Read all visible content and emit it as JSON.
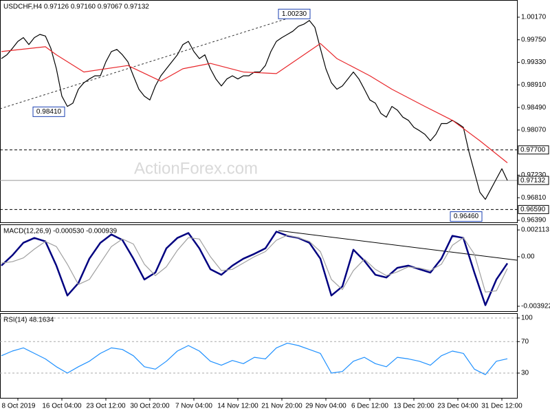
{
  "chart_data": [
    {
      "type": "line",
      "title": "USDCHF,H4  0.97126 0.97160 0.97067 0.97132",
      "watermark": "ActionForex.com",
      "categories": [
        null,
        null,
        null,
        "8 Oct 2019",
        null,
        null,
        null,
        null,
        null,
        null,
        null,
        "16 Oct 04:00",
        null,
        null,
        null,
        null,
        null,
        null,
        null,
        "23 Oct 12:00",
        null,
        null,
        null,
        null,
        null,
        null,
        null,
        "30 Oct 20:00",
        null,
        null,
        null,
        null,
        null,
        null,
        null,
        "7 Nov 04:00",
        null,
        null,
        null,
        null,
        null,
        null,
        null,
        "14 Nov 12:00",
        null,
        null,
        null,
        null,
        null,
        null,
        null,
        "21 Nov 20:00",
        null,
        null,
        null,
        null,
        null,
        null,
        null,
        "29 Nov 04:00",
        null,
        null,
        null,
        null,
        null,
        null,
        null,
        "6 Dec 12:00",
        null,
        null,
        null,
        null,
        null,
        null,
        null,
        "13 Dec 20:00",
        null,
        null,
        null,
        null,
        null,
        null,
        null,
        "23 Dec 04:00",
        null,
        null,
        null,
        null,
        null,
        null,
        null,
        "31 Dec 12:00",
        null
      ],
      "series": [
        {
          "color": "#000000",
          "values": [
            0.994,
            0.9947,
            0.9959,
            0.9972,
            0.9979,
            0.9966,
            0.9979,
            0.9985,
            0.9982,
            0.9959,
            0.9921,
            0.987,
            0.9851,
            0.9857,
            0.9883,
            0.9895,
            0.9902,
            0.9908,
            0.9908,
            0.9934,
            0.9953,
            0.9957,
            0.9947,
            0.9934,
            0.9908,
            0.9883,
            0.987,
            0.9863,
            0.9889,
            0.9908,
            0.9921,
            0.9934,
            0.9947,
            0.9966,
            0.9972,
            0.9953,
            0.994,
            0.9947,
            0.9921,
            0.9902,
            0.9889,
            0.9902,
            0.9908,
            0.9902,
            0.9908,
            0.9908,
            0.9915,
            0.9915,
            0.9927,
            0.9953,
            0.9972,
            0.9979,
            0.9985,
            0.9991,
            1.0,
            1.0004,
            1.0011,
            0.9998,
            0.9959,
            0.9921,
            0.9895,
            0.9883,
            0.9889,
            0.9902,
            0.9915,
            0.9902,
            0.9883,
            0.9863,
            0.9857,
            0.9838,
            0.9831,
            0.9851,
            0.9844,
            0.9831,
            0.9825,
            0.9812,
            0.9806,
            0.9799,
            0.9787,
            0.9799,
            0.9819,
            0.9819,
            0.9825,
            0.9819,
            0.9812,
            0.9767,
            0.9729,
            0.9691,
            0.9678,
            0.9697,
            0.9716,
            0.9735,
            0.97132
          ]
        },
        {
          "color": "#e8262a",
          "x": [
            0,
            8,
            10,
            15,
            23,
            29,
            33,
            38,
            44,
            50,
            55,
            58,
            61,
            67,
            71,
            77,
            82,
            87,
            92
          ],
          "values": [
            0.9953,
            0.9962,
            0.9947,
            0.9915,
            0.9927,
            0.9898,
            0.9921,
            0.9931,
            0.9915,
            0.9912,
            0.9947,
            0.9968,
            0.994,
            0.9908,
            0.9883,
            0.9851,
            0.9825,
            0.9787,
            0.9746
          ]
        }
      ],
      "ylim": [
        0.96352,
        1.0049
      ],
      "yticks": [
        {
          "value": 1.0017,
          "label": "1.00170"
        },
        {
          "value": 0.9975,
          "label": "0.99750"
        },
        {
          "value": 0.9933,
          "label": "0.99330"
        },
        {
          "value": 0.9891,
          "label": "0.98910"
        },
        {
          "value": 0.9849,
          "label": "0.98490"
        },
        {
          "value": 0.9807,
          "label": "0.98070"
        },
        {
          "value": 0.9723,
          "label": "0.97230"
        },
        {
          "value": 0.9681,
          "label": "0.96810"
        },
        {
          "value": 0.9639,
          "label": "0.96390"
        }
      ],
      "levels": [
        {
          "value": 0.977,
          "label": "0.97700",
          "style": "dashed"
        },
        {
          "value": 0.9659,
          "label": "0.96590",
          "style": "dashed"
        },
        {
          "value": 0.97132,
          "label": "0.97132",
          "style": "solid"
        }
      ],
      "annotations": [
        {
          "value": 1.0023,
          "label": "1.00230"
        },
        {
          "value": 0.9841,
          "label": "0.98410"
        },
        {
          "value": 0.9646,
          "label": "0.96460"
        }
      ]
    },
    {
      "type": "line",
      "title": "MACD(12,26,9) -0.000530 -0.000939",
      "series": [
        {
          "color": "#000080",
          "x": [
            0,
            2,
            4,
            6,
            8,
            10,
            12,
            14,
            16,
            18,
            20,
            22,
            24,
            26,
            28,
            30,
            32,
            34,
            36,
            38,
            40,
            42,
            44,
            46,
            48,
            50,
            52,
            54,
            56,
            58,
            60,
            62,
            64,
            66,
            68,
            70,
            72,
            74,
            76,
            78,
            80,
            82,
            84,
            86,
            88,
            90,
            92
          ],
          "values": [
            -0.00071,
            0.00011,
            0.0011,
            0.00148,
            0.00121,
            -0.00071,
            -0.00307,
            -0.00209,
            -0.00016,
            0.0011,
            0.00176,
            0.00132,
            -0.00016,
            -0.00181,
            -0.00126,
            0.00066,
            0.00148,
            0.00187,
            0.00066,
            -0.00099,
            -0.00143,
            -0.00071,
            -0.00016,
            0.00022,
            0.00066,
            0.00198,
            0.00165,
            0.00148,
            0.0011,
            -0.00016,
            -0.00307,
            -0.00236,
            0.00055,
            -0.00033,
            -0.00143,
            -0.00165,
            -0.00088,
            -0.00071,
            -0.00099,
            -0.00126,
            -0.00016,
            0.00165,
            0.00148,
            -0.00126,
            -0.00384,
            -0.00181,
            -0.00053
          ]
        },
        {
          "color": "#a0a0a0",
          "x": [
            0,
            2,
            4,
            6,
            8,
            10,
            12,
            14,
            16,
            18,
            20,
            22,
            24,
            26,
            28,
            30,
            32,
            34,
            36,
            38,
            40,
            42,
            44,
            46,
            48,
            50,
            52,
            54,
            56,
            58,
            60,
            62,
            64,
            66,
            68,
            70,
            72,
            74,
            76,
            78,
            80,
            82,
            84,
            86,
            88,
            90,
            92
          ],
          "values": [
            -0.0005,
            -0.0004,
            -0.0001,
            0.0006,
            0.0012,
            0.0008,
            -0.0006,
            -0.0022,
            -0.0018,
            -0.0005,
            0.0008,
            0.0014,
            0.001,
            -0.0006,
            -0.0015,
            -0.0008,
            0.0005,
            0.0015,
            0.0014,
            0.0,
            -0.0011,
            -0.001,
            -0.0005,
            0.0,
            0.0004,
            0.0013,
            0.0017,
            0.0015,
            0.0012,
            0.0004,
            -0.0018,
            -0.0026,
            -0.0011,
            -0.0002,
            -0.001,
            -0.0015,
            -0.0012,
            -0.0008,
            -0.0009,
            -0.0011,
            -0.0006,
            0.0009,
            0.0015,
            0.0002,
            -0.0028,
            -0.0027,
            -0.000939
          ]
        }
      ],
      "ylim": [
        -0.004306,
        0.002552
      ],
      "yticks": [
        0.002113,
        {
          "value": 0,
          "label": "0.00"
        },
        -0.003922
      ]
    },
    {
      "type": "line",
      "title": "RSI(14) 48.1634",
      "grid": true,
      "series": [
        {
          "color": "#1e90ff",
          "x": [
            0,
            2,
            4,
            6,
            8,
            10,
            12,
            14,
            16,
            18,
            20,
            22,
            24,
            26,
            28,
            30,
            32,
            34,
            36,
            38,
            40,
            42,
            44,
            46,
            48,
            50,
            52,
            54,
            56,
            58,
            60,
            62,
            64,
            66,
            68,
            70,
            72,
            74,
            76,
            78,
            80,
            82,
            84,
            86,
            88,
            90,
            92
          ],
          "values": [
            52,
            58,
            62,
            55,
            48,
            38,
            30,
            38,
            45,
            55,
            62,
            60,
            52,
            38,
            35,
            45,
            58,
            65,
            58,
            45,
            40,
            46,
            42,
            50,
            48,
            62,
            68,
            65,
            60,
            55,
            30,
            32,
            45,
            50,
            42,
            38,
            50,
            48,
            45,
            40,
            52,
            58,
            55,
            35,
            28,
            45,
            48.1634
          ]
        }
      ],
      "ylim": [
        -1.5,
        106.1
      ],
      "yticks": [
        100,
        70,
        30
      ]
    }
  ]
}
